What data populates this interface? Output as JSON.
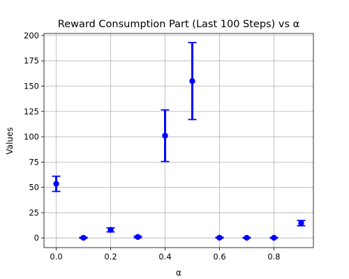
{
  "chart_data": {
    "type": "scatter",
    "title": "Reward Consumption Part (Last 100 Steps) vs α",
    "xlabel": "α",
    "ylabel": "Values",
    "xlim": [
      -0.045,
      0.945
    ],
    "ylim": [
      -9.5,
      202
    ],
    "xticks": [
      0.0,
      0.2,
      0.4,
      0.6,
      0.8
    ],
    "xtick_labels": [
      "0.0",
      "0.2",
      "0.4",
      "0.6",
      "0.8"
    ],
    "yticks": [
      0,
      25,
      50,
      75,
      100,
      125,
      150,
      175,
      200
    ],
    "ytick_labels": [
      "0",
      "25",
      "50",
      "75",
      "100",
      "125",
      "150",
      "175",
      "200"
    ],
    "grid": true,
    "color": "#0000ff",
    "series": [
      {
        "x": [
          0.0,
          0.1,
          0.2,
          0.3,
          0.4,
          0.5,
          0.6,
          0.7,
          0.8,
          0.9
        ],
        "y": [
          53.5,
          0.2,
          8.0,
          1.0,
          101.0,
          155.0,
          0.3,
          0.2,
          0.2,
          14.7
        ],
        "error": [
          7.5,
          0.5,
          2.0,
          0.8,
          25.5,
          38.0,
          0.4,
          0.3,
          0.3,
          2.6
        ]
      }
    ]
  }
}
